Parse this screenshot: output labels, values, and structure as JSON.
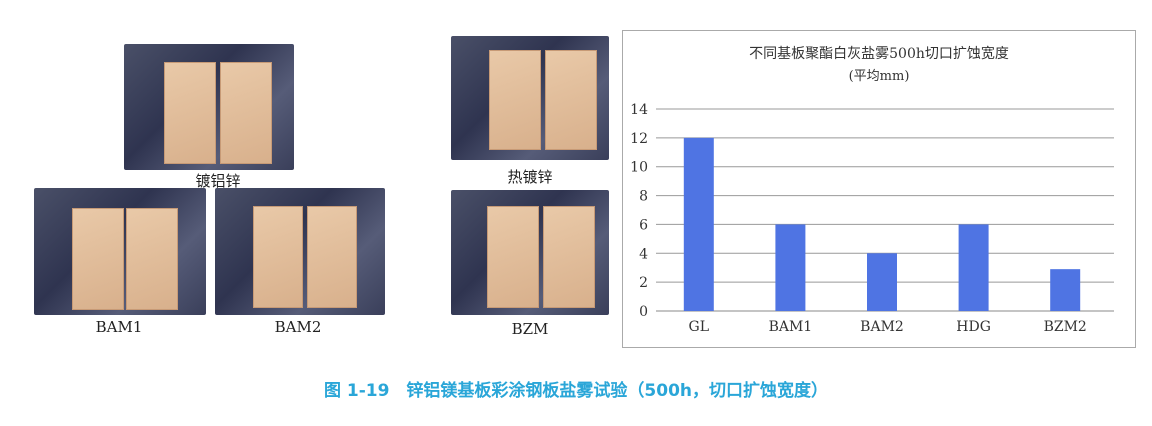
{
  "photos": [
    {
      "label": "镀铝锌"
    },
    {
      "label": "BAM1"
    },
    {
      "label": "BAM2"
    },
    {
      "label": "热镀锌"
    },
    {
      "label": "BZM"
    }
  ],
  "caption": "图 1-19　锌铝镁基板彩涂钢板盐雾试验（500h，切口扩蚀宽度）",
  "chart_data": {
    "type": "bar",
    "title": "不同基板聚酯白灰盐雾500h切口扩蚀宽度",
    "subtitle": "(平均mm)",
    "categories": [
      "GL",
      "BAM1",
      "BAM2",
      "HDG",
      "BZM2"
    ],
    "values": [
      12,
      6,
      4,
      6,
      2.9
    ],
    "ylim": [
      0,
      14
    ],
    "yticks": [
      "0",
      "2",
      "4",
      "6",
      "8",
      "10",
      "12",
      "14"
    ],
    "grid": true,
    "bar_color": "#4f74e3"
  }
}
